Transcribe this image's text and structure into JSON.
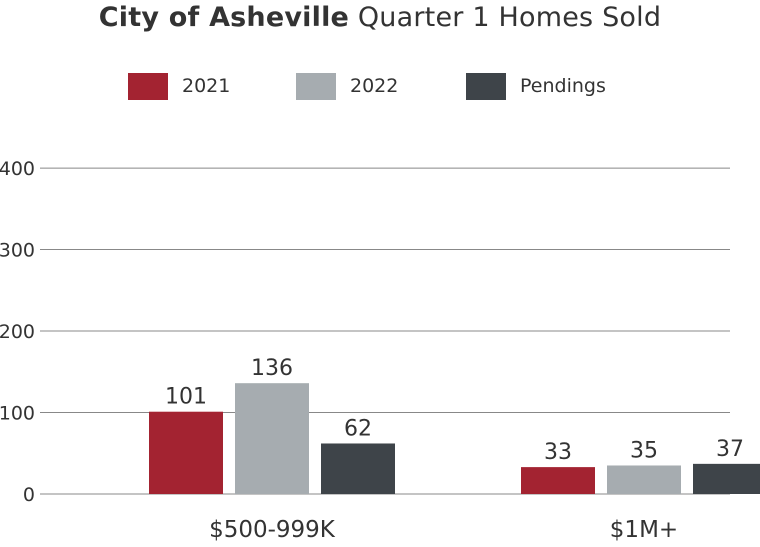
{
  "title": {
    "bold": "City of Asheville",
    "rest": "Quarter 1 Homes Sold"
  },
  "colors": {
    "2021": "#a32331",
    "2022": "#a6acb0",
    "Pendings": "#3e4449",
    "grid": "#888888",
    "text": "#333333"
  },
  "chart_data": {
    "type": "bar",
    "title": "City of Asheville Quarter 1 Homes Sold",
    "categories": [
      "$500-999K",
      "$1M+"
    ],
    "series": [
      {
        "name": "2021",
        "values": [
          101,
          33
        ]
      },
      {
        "name": "2022",
        "values": [
          136,
          35
        ]
      },
      {
        "name": "Pendings",
        "values": [
          62,
          37
        ]
      }
    ],
    "y_ticks": [
      "0",
      "100",
      "200",
      "300",
      "400"
    ],
    "ylim": [
      0,
      400
    ],
    "grid": true,
    "legend": "top-center"
  }
}
